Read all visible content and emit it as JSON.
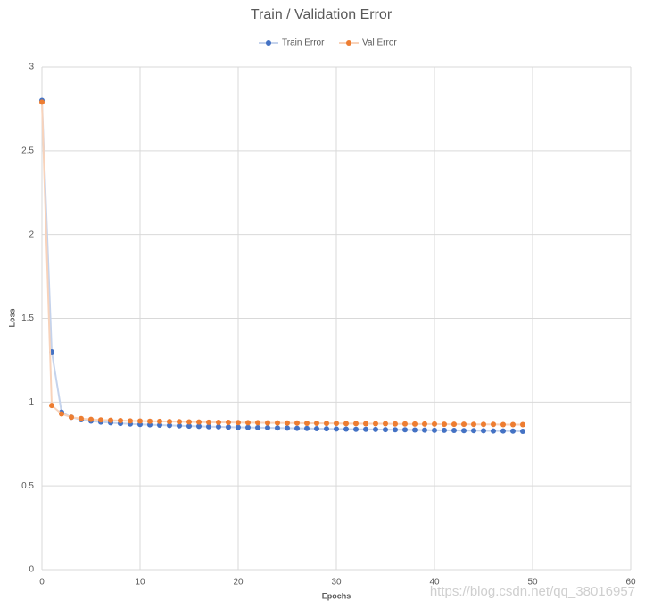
{
  "chart_data": {
    "type": "line",
    "title": "Train / Validation Error",
    "x_label": "Epochs",
    "y_label": "Loss",
    "x": [
      0,
      1,
      2,
      3,
      4,
      5,
      6,
      7,
      8,
      9,
      10,
      11,
      12,
      13,
      14,
      15,
      16,
      17,
      18,
      19,
      20,
      21,
      22,
      23,
      24,
      25,
      26,
      27,
      28,
      29,
      30,
      31,
      32,
      33,
      34,
      35,
      36,
      37,
      38,
      39,
      40,
      41,
      42,
      43,
      44,
      45,
      46,
      47,
      48,
      49
    ],
    "series": [
      {
        "name": "Train Error",
        "color": "#4472c4",
        "line_color": "#c5d3ec",
        "values": [
          2.8,
          1.3,
          0.94,
          0.91,
          0.895,
          0.887,
          0.881,
          0.877,
          0.873,
          0.87,
          0.867,
          0.865,
          0.863,
          0.861,
          0.859,
          0.857,
          0.856,
          0.854,
          0.853,
          0.851,
          0.85,
          0.849,
          0.848,
          0.847,
          0.846,
          0.845,
          0.844,
          0.843,
          0.842,
          0.841,
          0.84,
          0.839,
          0.838,
          0.838,
          0.837,
          0.836,
          0.835,
          0.835,
          0.834,
          0.833,
          0.832,
          0.832,
          0.831,
          0.83,
          0.83,
          0.829,
          0.828,
          0.828,
          0.827,
          0.826
        ]
      },
      {
        "name": "Val Error",
        "color": "#ed7d31",
        "line_color": "#f8d3bb",
        "values": [
          2.79,
          0.98,
          0.93,
          0.91,
          0.902,
          0.897,
          0.894,
          0.892,
          0.89,
          0.888,
          0.887,
          0.886,
          0.885,
          0.884,
          0.883,
          0.882,
          0.881,
          0.88,
          0.879,
          0.879,
          0.878,
          0.877,
          0.877,
          0.876,
          0.876,
          0.875,
          0.875,
          0.874,
          0.874,
          0.873,
          0.873,
          0.872,
          0.872,
          0.871,
          0.871,
          0.871,
          0.87,
          0.87,
          0.869,
          0.869,
          0.869,
          0.868,
          0.868,
          0.868,
          0.867,
          0.867,
          0.867,
          0.866,
          0.866,
          0.866
        ]
      }
    ],
    "xlim": [
      0,
      60
    ],
    "xticks": [
      0,
      10,
      20,
      30,
      40,
      50,
      60
    ],
    "ylim": [
      0,
      3
    ],
    "yticks": [
      0,
      0.5,
      1,
      1.5,
      2,
      2.5,
      3
    ],
    "grid": true,
    "legend": "top",
    "watermark": "https://blog.csdn.net/qq_38016957"
  }
}
